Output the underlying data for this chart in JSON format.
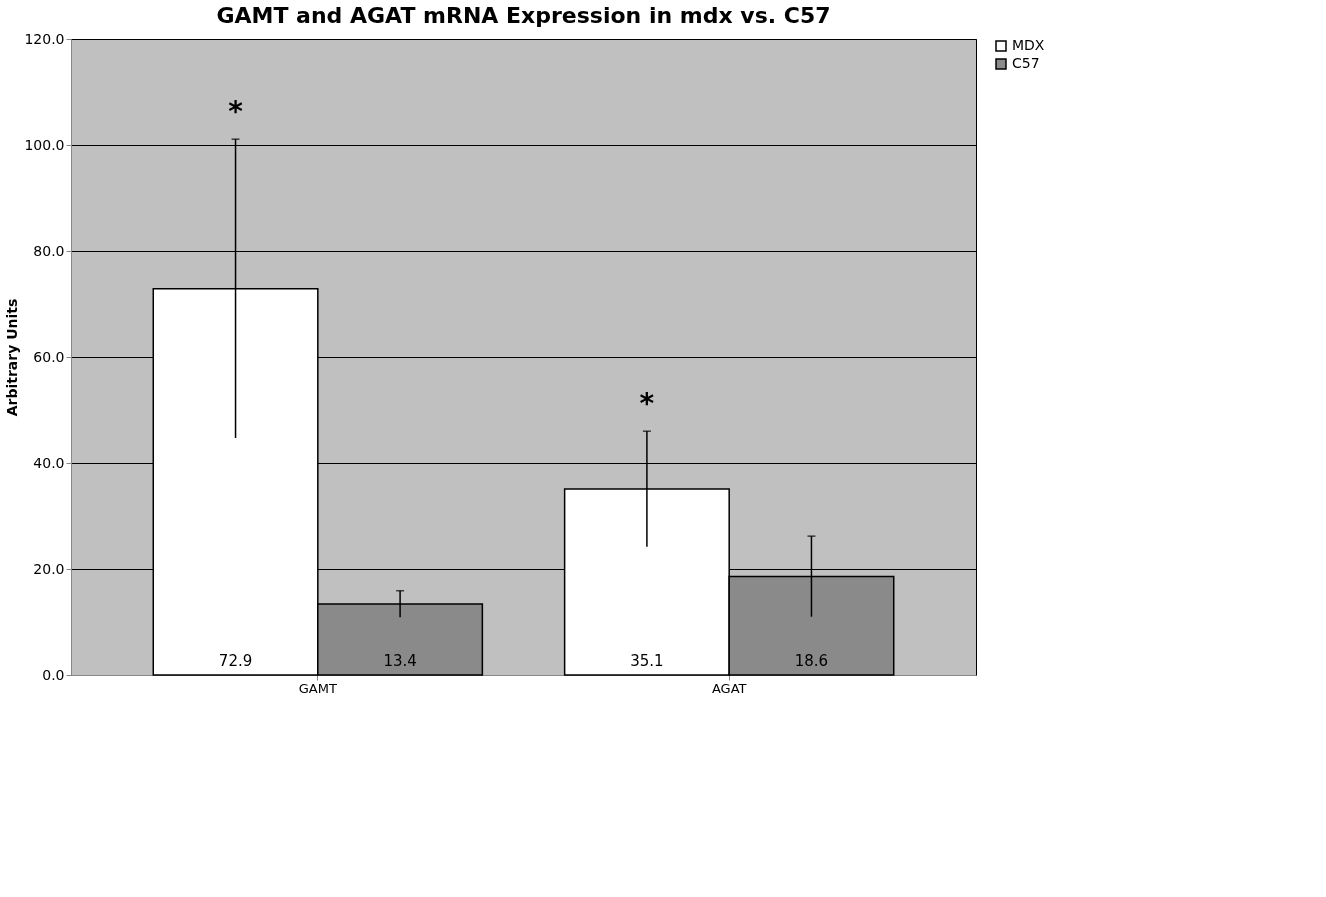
{
  "chart_data": {
    "type": "bar",
    "title": "GAMT and AGAT mRNA Expression in mdx vs. C57",
    "ylabel": "Arbitrary Units",
    "categories": [
      "GAMT",
      "AGAT"
    ],
    "series": [
      {
        "name": "MDX",
        "color": "#ffffff",
        "values": [
          72.9,
          35.1
        ],
        "errors": [
          28.2,
          10.9
        ]
      },
      {
        "name": "C57",
        "color": "#8a8a8a",
        "values": [
          13.4,
          18.6
        ],
        "errors": [
          2.5,
          7.6
        ]
      }
    ],
    "data_labels": true,
    "ylim": [
      0,
      120
    ],
    "yticks": [
      {
        "value": 0,
        "label": "0.0"
      },
      {
        "value": 20,
        "label": "20.0"
      },
      {
        "value": 40,
        "label": "40.0"
      },
      {
        "value": 60,
        "label": "60.0"
      },
      {
        "value": 80,
        "label": "80.0"
      },
      {
        "value": 100,
        "label": "100.0"
      },
      {
        "value": 120,
        "label": "120.0"
      }
    ],
    "grid": "y",
    "legend": "right",
    "annotations": [
      "*",
      "*"
    ]
  }
}
